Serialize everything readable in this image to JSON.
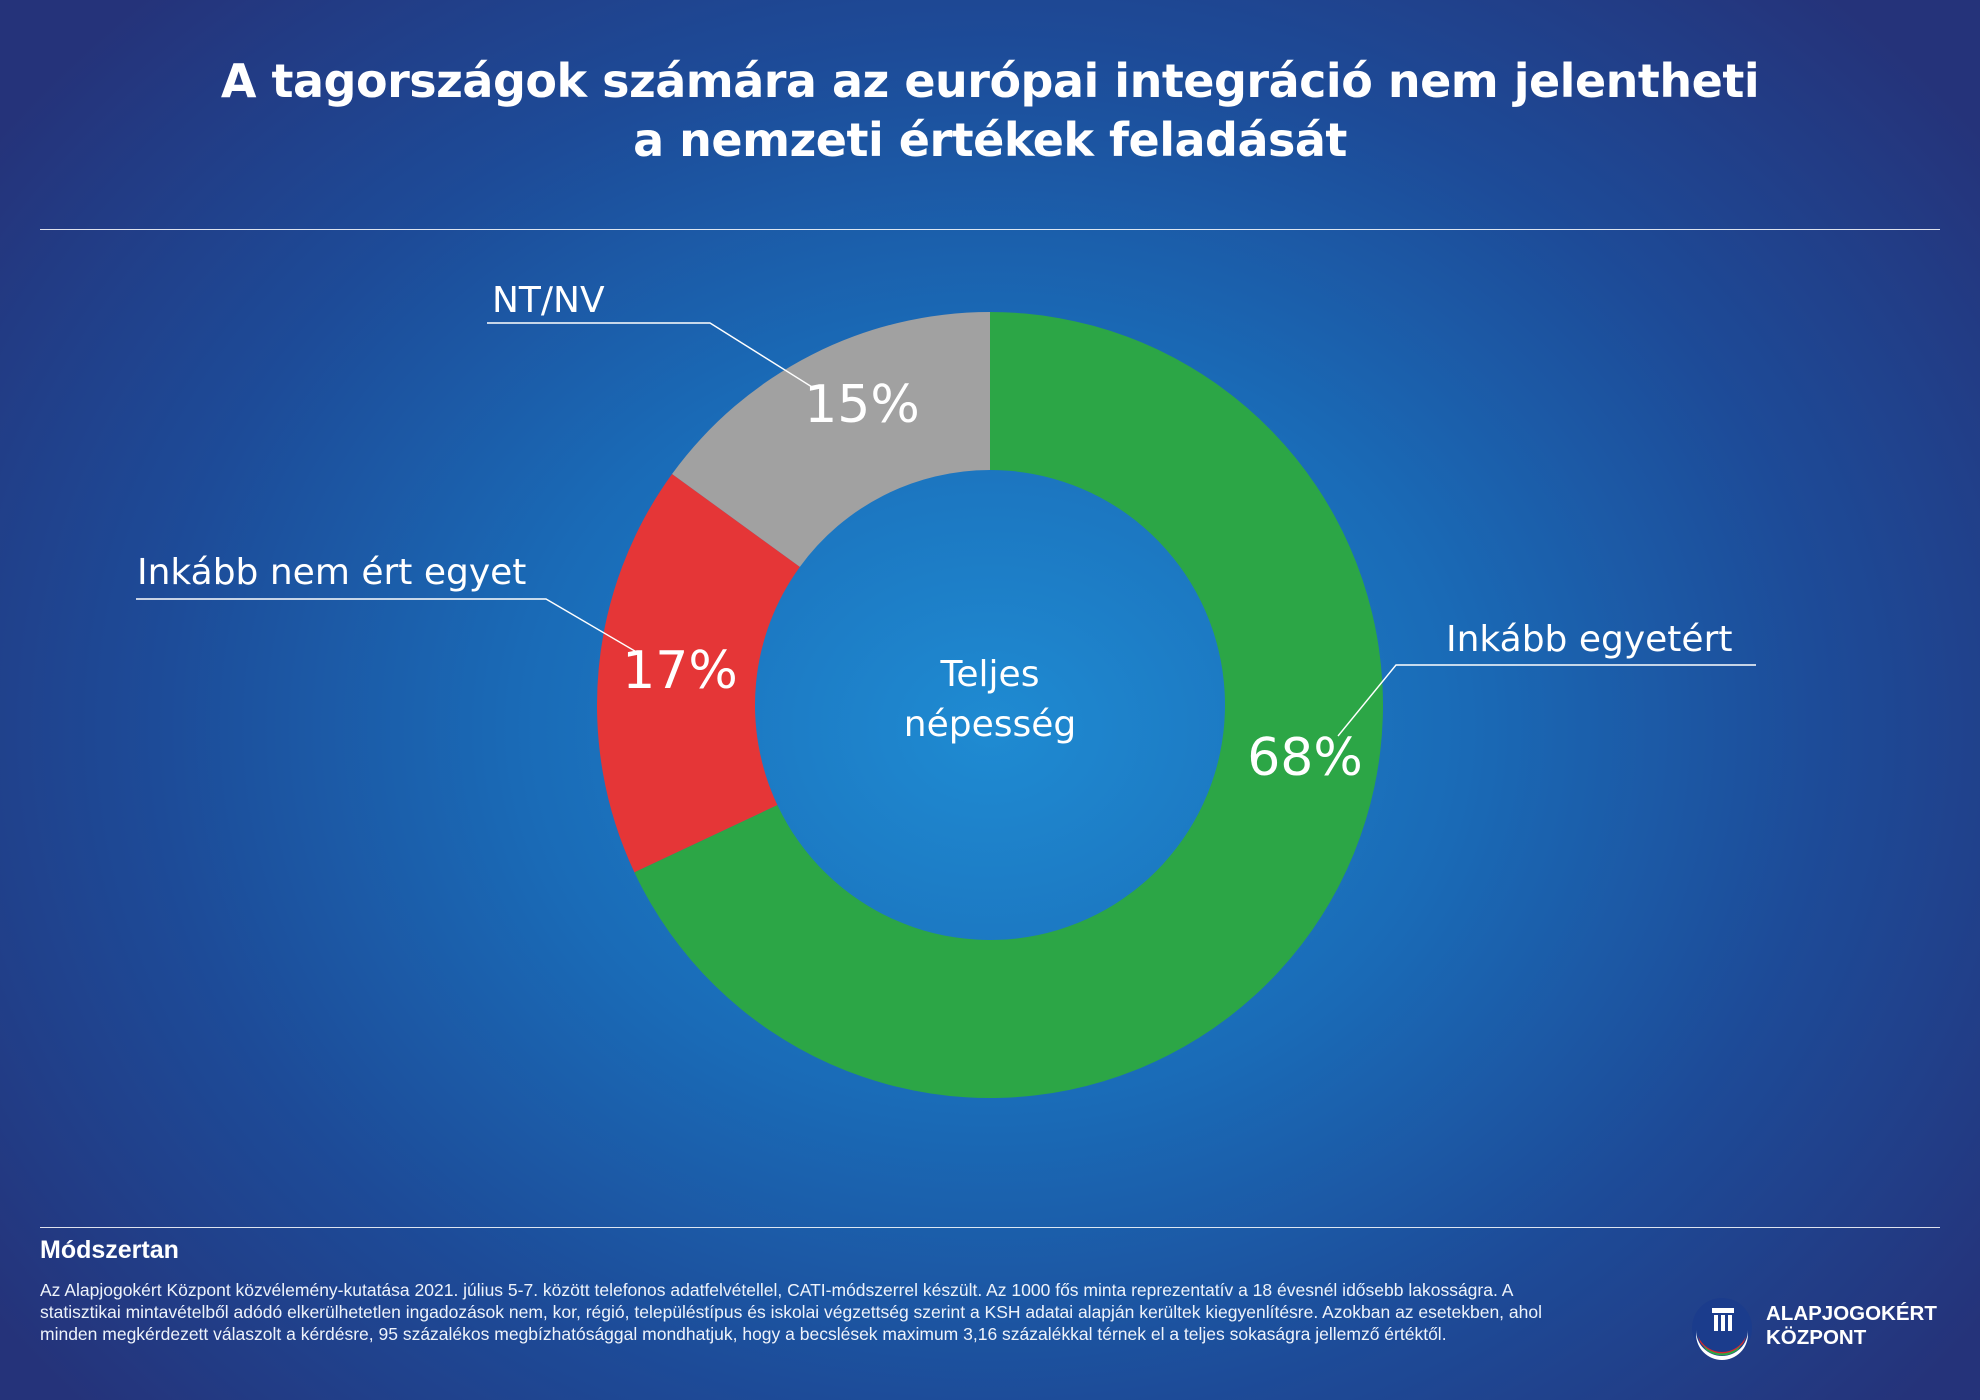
{
  "title": {
    "line1": "A tagországok számára az európai integráció nem jelentheti",
    "line2": "a nemzeti értékek feladását"
  },
  "chart_data": {
    "type": "pie",
    "center_label": [
      "Teljes",
      "népesség"
    ],
    "slices": [
      {
        "label": "Inkább egyetért",
        "value": 68,
        "display": "68%",
        "color": "#2ca646"
      },
      {
        "label": "Inkább nem ért egyet",
        "value": 17,
        "display": "17%",
        "color": "#e53637"
      },
      {
        "label": "NT/NV",
        "value": 15,
        "display": "15%",
        "color": "#a1a1a1"
      }
    ]
  },
  "methodology": {
    "heading": "Módszertan",
    "text": "Az Alapjogokért Központ közvélemény-kutatása 2021. július 5-7. között telefonos adatfelvétellel, CATI-módszerrel készült. Az 1000 fős minta reprezentatív a 18 évesnél idősebb lakosságra. A statisztikai mintavételből adódó elkerülhetetlen ingadozások nem, kor, régió, településtípus és iskolai végzettség szerint a KSH adatai alapján kerültek kiegyenlítésre. Azokban az esetekben, ahol minden megkérdezett válaszolt a kérdésre, 95 százalékos megbízhatósággal mondhatjuk, hogy a becslések maximum 3,16 százalékkal térnek el a teljes sokaságra jellemző értéktől."
  },
  "logo": {
    "line1": "ALAPJOGOKÉRT",
    "line2": "KÖZPONT",
    "icon": "alapjogokert-column-icon"
  }
}
